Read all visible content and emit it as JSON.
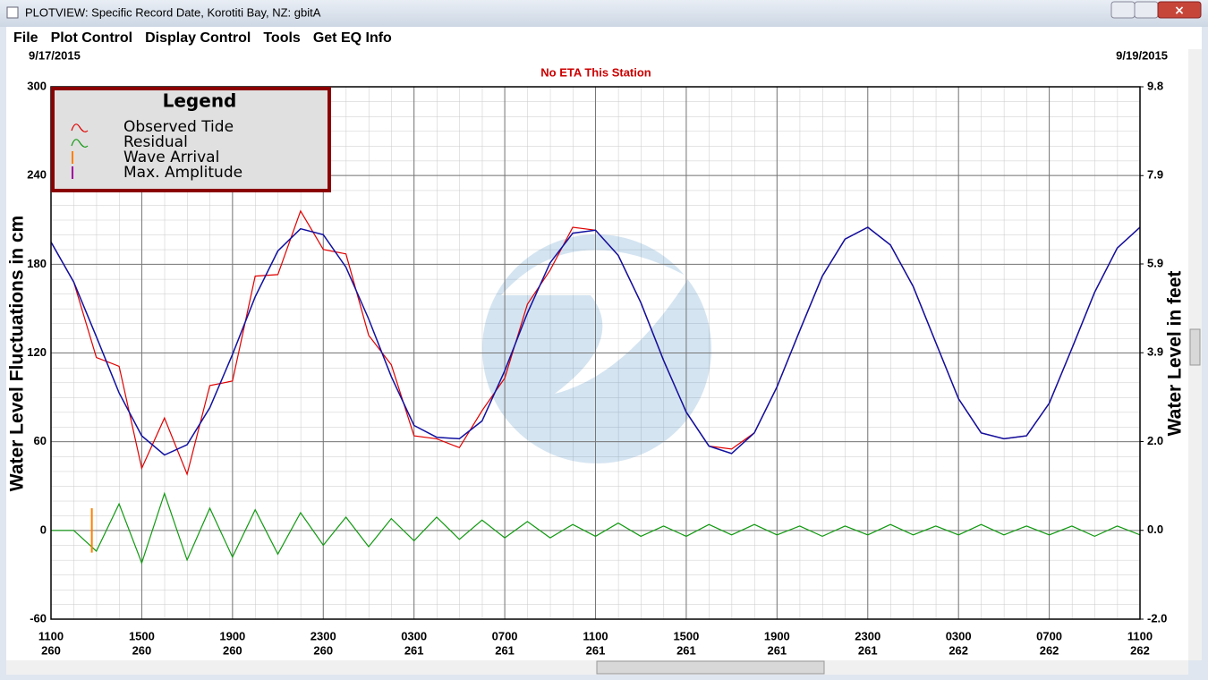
{
  "window": {
    "title": "PLOTVIEW: Specific Record Date, Korotiti Bay, NZ: gbitA"
  },
  "menu": [
    "File",
    "Plot Control",
    "Display Control",
    "Tools",
    "Get EQ Info"
  ],
  "chart_data": {
    "type": "line",
    "start_date": "9/17/2015",
    "end_date": "9/19/2015",
    "subtitle": "No ETA This Station",
    "ylabel": "Water Level Fluctuations in cm",
    "y2label": "Water Level in feet",
    "legend_title": "Legend",
    "x": [
      0,
      1,
      2,
      3,
      4,
      5,
      6,
      7,
      8,
      9,
      10,
      11,
      12,
      13,
      14,
      15,
      16,
      17,
      18,
      19,
      20,
      21,
      22,
      23,
      24,
      25,
      26,
      27,
      28,
      29,
      30,
      31,
      32,
      33,
      34,
      35,
      36,
      37,
      38,
      39,
      40,
      41,
      42,
      43,
      44,
      45,
      46,
      47,
      48
    ],
    "xticks": [
      {
        "value": 0,
        "label": "1100"
      },
      {
        "value": 4,
        "label": "1500"
      },
      {
        "value": 8,
        "label": "1900"
      },
      {
        "value": 12,
        "label": "2300"
      },
      {
        "value": 16,
        "label": "0300"
      },
      {
        "value": 20,
        "label": "0700"
      },
      {
        "value": 24,
        "label": "1100"
      },
      {
        "value": 28,
        "label": "1500"
      },
      {
        "value": 32,
        "label": "1900"
      },
      {
        "value": 36,
        "label": "2300"
      },
      {
        "value": 40,
        "label": "0300"
      },
      {
        "value": 44,
        "label": "0700"
      },
      {
        "value": 48,
        "label": "1100"
      }
    ],
    "xtick_days": [
      "260",
      "260",
      "260",
      "260",
      "261",
      "261",
      "261",
      "261",
      "261",
      "261",
      "262",
      "262",
      "262"
    ],
    "ylim": [
      -60,
      300
    ],
    "yticks": [
      -60,
      0,
      60,
      120,
      180,
      240,
      300
    ],
    "y2lim": [
      -1.97,
      9.84
    ],
    "y2ticks": [
      {
        "value": -1.97,
        "label": "-2.0"
      },
      {
        "value": 0,
        "label": "0.0"
      },
      {
        "value": 1.97,
        "label": "2.0"
      },
      {
        "value": 3.94,
        "label": "3.9"
      },
      {
        "value": 5.91,
        "label": "5.9"
      },
      {
        "value": 7.87,
        "label": "7.9"
      },
      {
        "value": 9.84,
        "label": "9.8"
      }
    ],
    "grid": true,
    "series": [
      {
        "name": "Observed Tide",
        "color": "#e00000",
        "values": [
          195,
          168,
          117,
          111,
          42,
          76,
          38,
          98,
          101,
          172,
          173,
          216,
          190,
          187,
          132,
          112,
          64,
          62,
          56,
          81,
          103,
          153,
          176,
          205,
          203,
          186,
          154,
          115,
          80,
          57,
          55,
          66,
          97,
          135,
          172,
          197,
          205,
          193,
          165,
          127,
          89,
          66,
          62,
          64,
          86,
          123,
          161,
          191,
          205
        ]
      },
      {
        "color": "#1010a0",
        "values": [
          195,
          168,
          131,
          93,
          64,
          51,
          58,
          83,
          119,
          158,
          189,
          204,
          200,
          178,
          143,
          104,
          71,
          63,
          62,
          74,
          108,
          147,
          181,
          201,
          203,
          186,
          154,
          115,
          80,
          57,
          52,
          66,
          97,
          135,
          172,
          197,
          205,
          193,
          165,
          127,
          89,
          66,
          62,
          64,
          86,
          123,
          161,
          191,
          205
        ]
      },
      {
        "name": "Residual",
        "color": "#119911",
        "values": [
          0,
          0,
          -14,
          18,
          -22,
          25,
          -20,
          15,
          -18,
          14,
          -16,
          12,
          -10,
          9,
          -11,
          8,
          -7,
          9,
          -6,
          7,
          -5,
          6,
          -5,
          4,
          -4,
          5,
          -4,
          3,
          -4,
          4,
          -3,
          4,
          -3,
          3,
          -4,
          3,
          -3,
          4,
          -3,
          3,
          -3,
          4,
          -3,
          3,
          -3,
          3,
          -4,
          3,
          -3
        ]
      }
    ],
    "markers": [
      {
        "name": "Wave Arrival",
        "color": "#ff8000",
        "x": 1.8
      },
      {
        "name": "Max. Amplitude",
        "color": "#a000a0"
      }
    ]
  }
}
